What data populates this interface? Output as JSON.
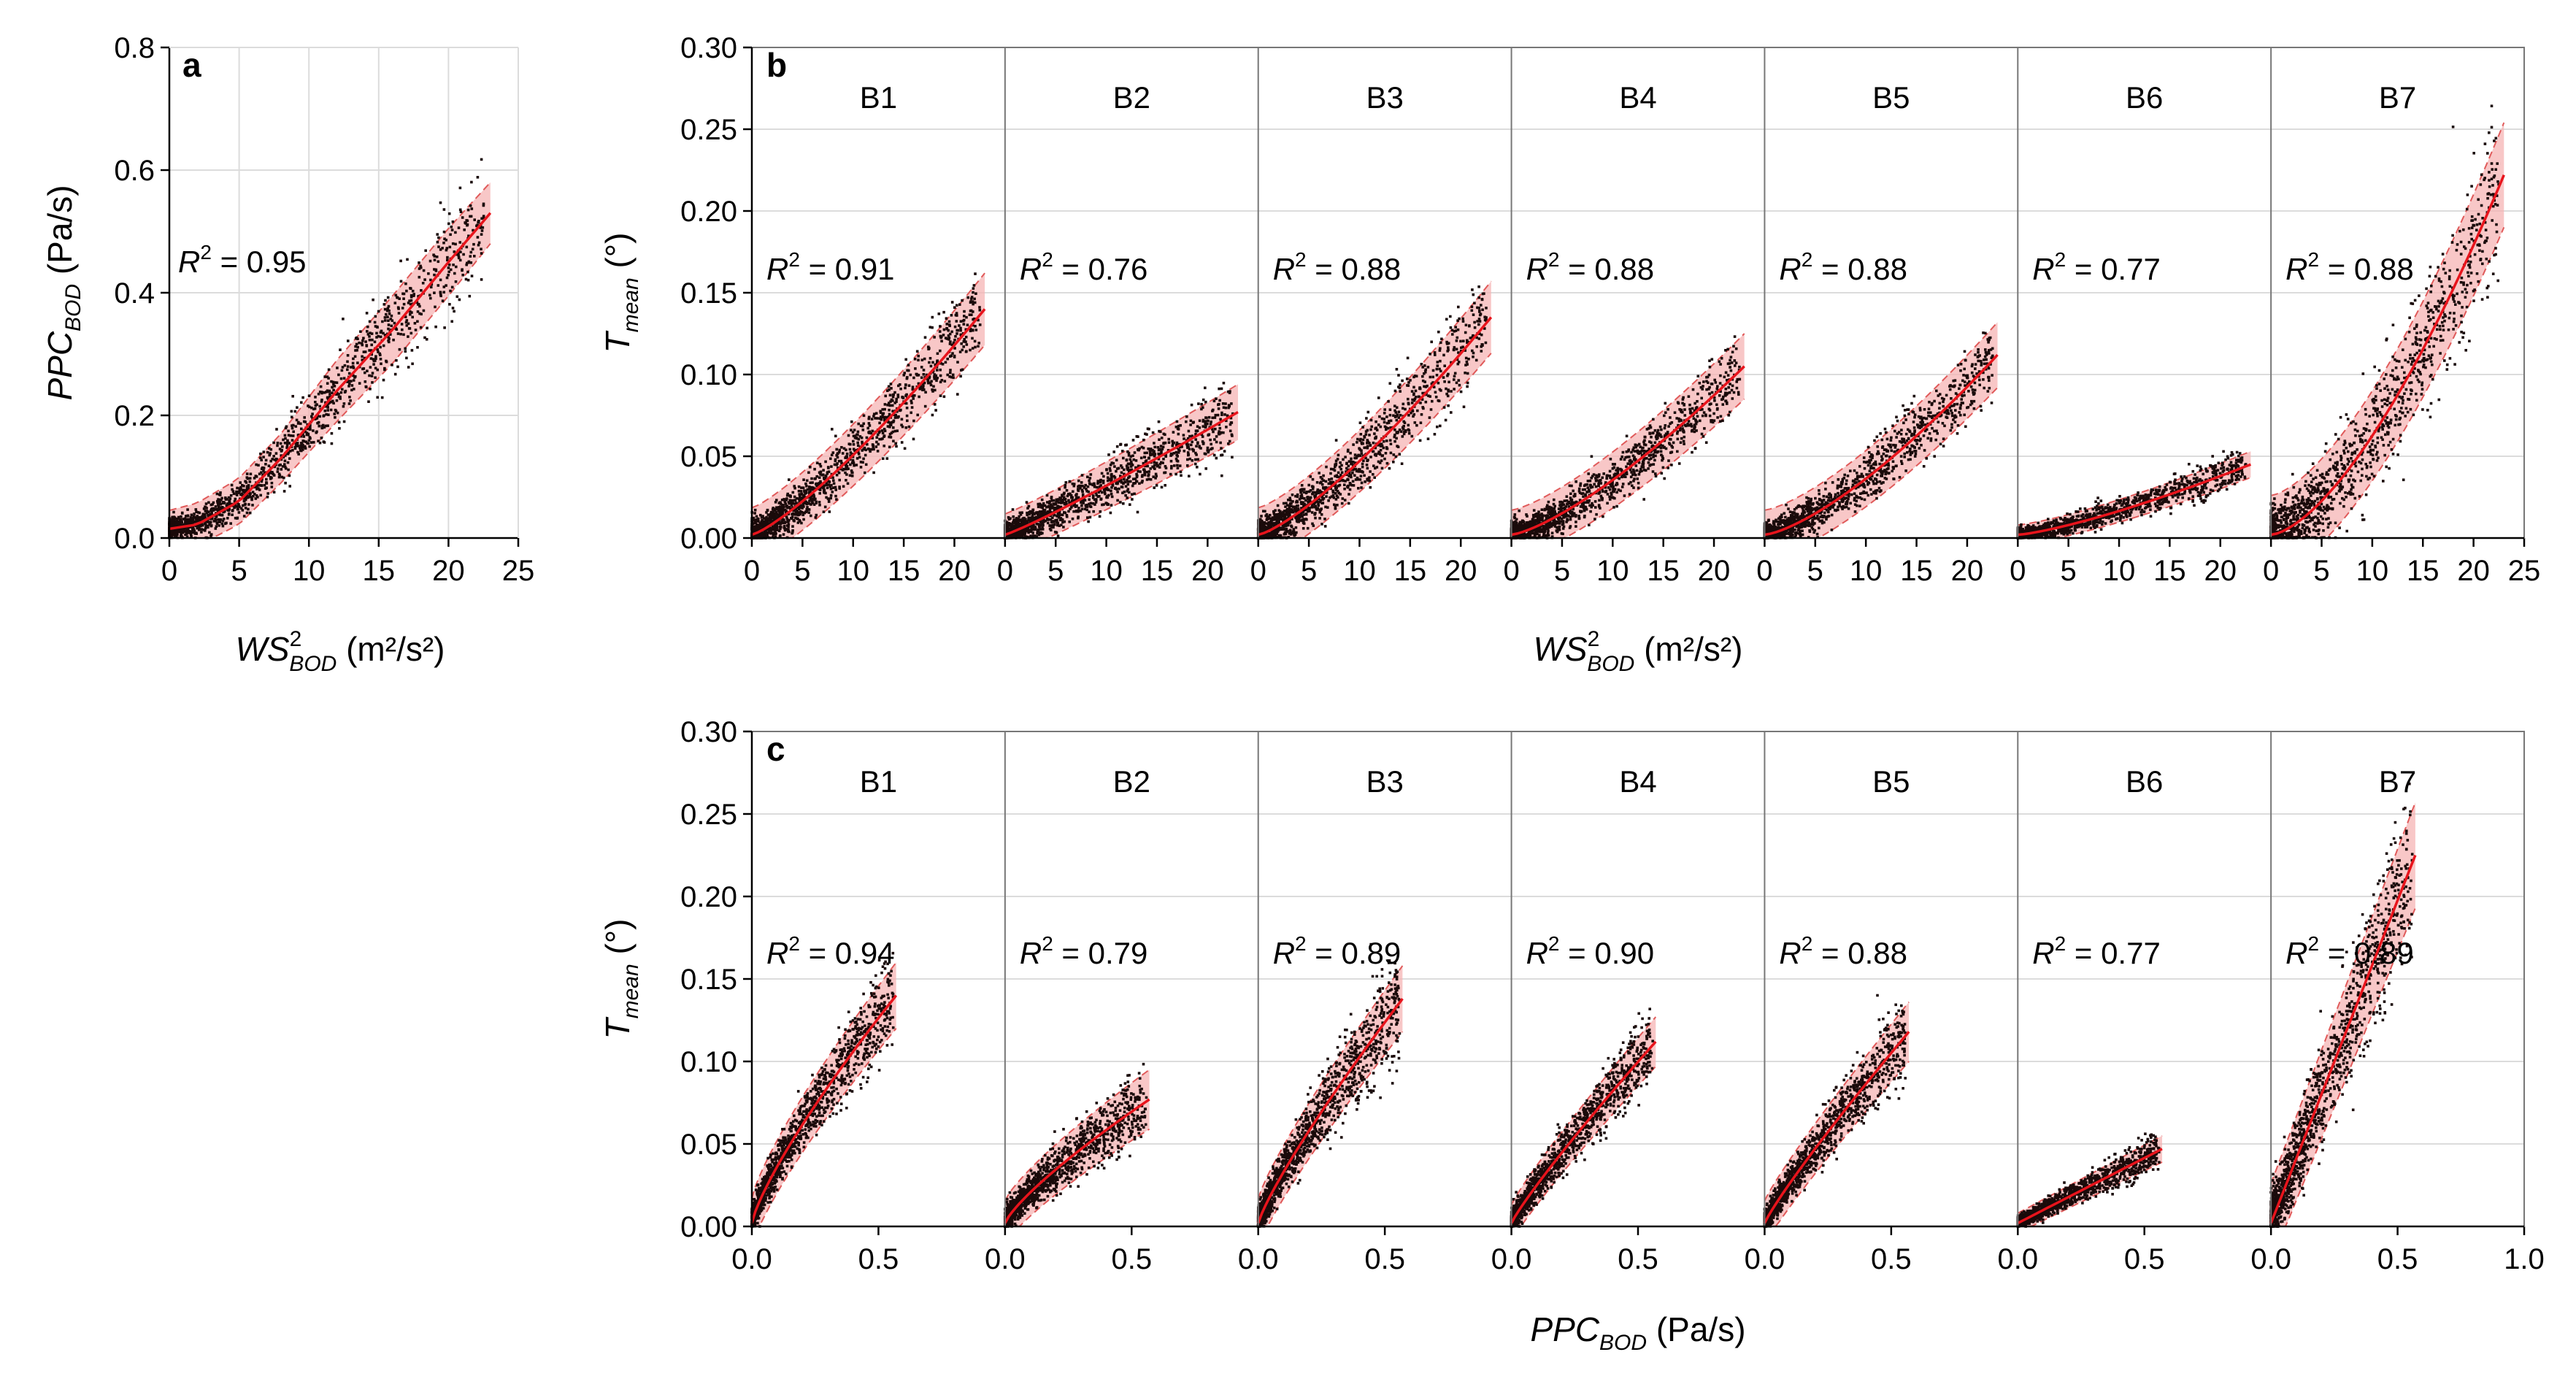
{
  "colors": {
    "fit_line": "#e8141c",
    "band_fill": "#f6b4b4",
    "band_edge": "#e05a5a",
    "points": "#1a0a0a",
    "grid": "#dcdcdc",
    "axis": "#000000",
    "separator": "#777777"
  },
  "chart_data": [
    {
      "panel": "a",
      "type": "scatter",
      "xlabel": {
        "var": "WS",
        "sup": "2",
        "sub": "BOD",
        "unit": " (m²/s²)"
      },
      "ylabel": {
        "var": "PPC",
        "sub": "BOD",
        "unit": " (Pa/s)"
      },
      "xlim": [
        0,
        25
      ],
      "ylim": [
        0,
        0.8
      ],
      "xticks": [
        0,
        5,
        10,
        15,
        20,
        25
      ],
      "xtick_labels": [
        "0",
        "5",
        "10",
        "15",
        "20",
        "25"
      ],
      "yticks": [
        0,
        0.2,
        0.4,
        0.6,
        0.8
      ],
      "ytick_labels": [
        "0.0",
        "0.2",
        "0.4",
        "0.6",
        "0.8"
      ],
      "grid": true,
      "fit": {
        "x": [
          0,
          2,
          5,
          8,
          12,
          16,
          20,
          23
        ],
        "y": [
          0.015,
          0.022,
          0.06,
          0.13,
          0.24,
          0.34,
          0.45,
          0.53
        ]
      },
      "band": {
        "lower": [
          0.0,
          0.0,
          0.025,
          0.09,
          0.19,
          0.29,
          0.4,
          0.48
        ],
        "upper": [
          0.06,
          0.07,
          0.1,
          0.17,
          0.29,
          0.4,
          0.51,
          0.58
        ]
      },
      "r2": {
        "prefix": "R",
        "sup": "2",
        "value": " = 0.95"
      }
    },
    {
      "panel": "b",
      "type": "scatter",
      "xlabel": {
        "var": "WS",
        "sup": "2",
        "sub": "BOD",
        "unit": " (m²/s²)"
      },
      "ylabel": {
        "var": "T",
        "sub": "mean",
        "unit": " (°)"
      },
      "ylim": [
        0,
        0.3
      ],
      "yticks": [
        0,
        0.05,
        0.1,
        0.15,
        0.2,
        0.25,
        0.3
      ],
      "ytick_labels": [
        "0.00",
        "0.05",
        "0.10",
        "0.15",
        "0.20",
        "0.25",
        "0.30"
      ],
      "grid": true,
      "subpanel_xlim": [
        0,
        25
      ],
      "subpanel_xticks": [
        0,
        5,
        10,
        15,
        20
      ],
      "subpanel_xtick_labels": [
        "0",
        "5",
        "10",
        "15",
        "20"
      ],
      "last_subpanel_xticks": [
        0,
        5,
        10,
        15,
        20,
        25
      ],
      "last_subpanel_xtick_labels": [
        "0",
        "5",
        "10",
        "15",
        "20",
        "25"
      ],
      "fit_xmax": 23,
      "subpanels": [
        {
          "name": "B1",
          "r2": {
            "prefix": "R",
            "sup": "2",
            "value": " = 0.91"
          },
          "fit_end": 0.14,
          "band_half": 0.022,
          "curv": 1.25,
          "spread": 0.012
        },
        {
          "name": "B2",
          "r2": {
            "prefix": "R",
            "sup": "2",
            "value": " = 0.76"
          },
          "fit_end": 0.077,
          "band_half": 0.017,
          "curv": 1.1,
          "spread": 0.01
        },
        {
          "name": "B3",
          "r2": {
            "prefix": "R",
            "sup": "2",
            "value": " = 0.88"
          },
          "fit_end": 0.135,
          "band_half": 0.022,
          "curv": 1.3,
          "spread": 0.013
        },
        {
          "name": "B4",
          "r2": {
            "prefix": "R",
            "sup": "2",
            "value": " = 0.88"
          },
          "fit_end": 0.105,
          "band_half": 0.02,
          "curv": 1.35,
          "spread": 0.01
        },
        {
          "name": "B5",
          "r2": {
            "prefix": "R",
            "sup": "2",
            "value": " = 0.88"
          },
          "fit_end": 0.112,
          "band_half": 0.02,
          "curv": 1.4,
          "spread": 0.01
        },
        {
          "name": "B6",
          "r2": {
            "prefix": "R",
            "sup": "2",
            "value": " = 0.77"
          },
          "fit_end": 0.045,
          "band_half": 0.008,
          "curv": 1.3,
          "spread": 0.005
        },
        {
          "name": "B7",
          "r2": {
            "prefix": "R",
            "sup": "2",
            "value": " = 0.88"
          },
          "fit_end": 0.222,
          "band_half": 0.032,
          "curv": 1.55,
          "spread": 0.022
        }
      ]
    },
    {
      "panel": "c",
      "type": "scatter",
      "xlabel": {
        "var": "PPC",
        "sub": "BOD",
        "unit": " (Pa/s)"
      },
      "ylabel": {
        "var": "T",
        "sub": "mean",
        "unit": " (°)"
      },
      "ylim": [
        0,
        0.3
      ],
      "yticks": [
        0,
        0.05,
        0.1,
        0.15,
        0.2,
        0.25,
        0.3
      ],
      "ytick_labels": [
        "0.00",
        "0.05",
        "0.10",
        "0.15",
        "0.20",
        "0.25",
        "0.30"
      ],
      "grid": true,
      "subpanel_xlim": [
        0,
        1.0
      ],
      "subpanel_xticks": [
        0,
        0.5
      ],
      "subpanel_xtick_labels": [
        "0.0",
        "0.5"
      ],
      "last_subpanel_xticks": [
        0,
        0.5,
        1.0
      ],
      "last_subpanel_xtick_labels": [
        "0.0",
        "0.5",
        "1.0"
      ],
      "fit_xmax": 0.57,
      "subpanels": [
        {
          "name": "B1",
          "r2": {
            "prefix": "R",
            "sup": "2",
            "value": " = 0.94"
          },
          "fit_end": 0.14,
          "band_half": 0.02,
          "curv": 0.8,
          "spread": 0.012
        },
        {
          "name": "B2",
          "r2": {
            "prefix": "R",
            "sup": "2",
            "value": " = 0.79"
          },
          "fit_end": 0.077,
          "band_half": 0.018,
          "curv": 0.8,
          "spread": 0.01
        },
        {
          "name": "B3",
          "r2": {
            "prefix": "R",
            "sup": "2",
            "value": " = 0.89"
          },
          "fit_end": 0.138,
          "band_half": 0.02,
          "curv": 0.85,
          "spread": 0.013
        },
        {
          "name": "B4",
          "r2": {
            "prefix": "R",
            "sup": "2",
            "value": " = 0.90"
          },
          "fit_end": 0.112,
          "band_half": 0.015,
          "curv": 0.9,
          "spread": 0.01
        },
        {
          "name": "B5",
          "r2": {
            "prefix": "R",
            "sup": "2",
            "value": " = 0.88"
          },
          "fit_end": 0.118,
          "band_half": 0.018,
          "curv": 0.9,
          "spread": 0.01
        },
        {
          "name": "B6",
          "r2": {
            "prefix": "R",
            "sup": "2",
            "value": " = 0.77"
          },
          "fit_end": 0.047,
          "band_half": 0.008,
          "curv": 1.0,
          "spread": 0.005
        },
        {
          "name": "B7",
          "r2": {
            "prefix": "R",
            "sup": "2",
            "value": " = 0.89"
          },
          "fit_end": 0.225,
          "band_half": 0.032,
          "curv": 1.0,
          "spread": 0.022
        }
      ]
    }
  ]
}
